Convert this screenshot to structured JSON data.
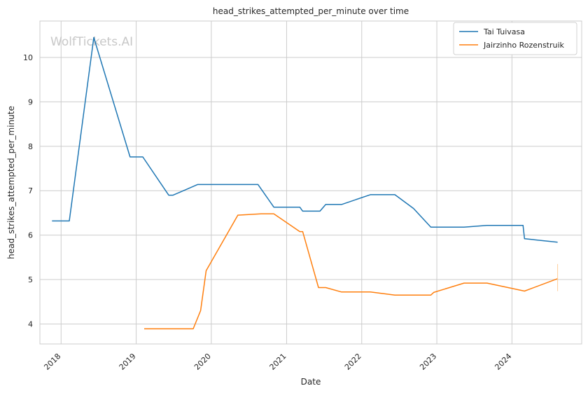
{
  "chart_data": {
    "type": "line",
    "title": "head_strikes_attempted_per_minute over time",
    "xlabel": "Date",
    "ylabel": "head_strikes_attempted_per_minute",
    "watermark": "WolfTickets.AI",
    "x_ticks": [
      "2018",
      "2019",
      "2020",
      "2021",
      "2022",
      "2023",
      "2024"
    ],
    "y_ticks": [
      4,
      5,
      6,
      7,
      8,
      9,
      10
    ],
    "xlim": [
      "2017-09-20",
      "2024-12-05"
    ],
    "ylim": [
      3.55,
      10.82
    ],
    "grid": true,
    "legend_position": "top-right",
    "series": [
      {
        "name": "Tai Tuivasa",
        "color": "#1f77b4",
        "points": [
          [
            "2017-11-18",
            6.32
          ],
          [
            "2018-02-10",
            6.32
          ],
          [
            "2018-06-09",
            10.45
          ],
          [
            "2018-12-02",
            7.76
          ],
          [
            "2019-02-02",
            7.76
          ],
          [
            "2019-06-08",
            6.9
          ],
          [
            "2019-06-29",
            6.9
          ],
          [
            "2019-10-26",
            7.14
          ],
          [
            "2020-08-15",
            7.14
          ],
          [
            "2020-10-31",
            6.63
          ],
          [
            "2021-03-06",
            6.63
          ],
          [
            "2021-03-20",
            6.54
          ],
          [
            "2021-06-12",
            6.54
          ],
          [
            "2021-07-10",
            6.69
          ],
          [
            "2021-09-25",
            6.69
          ],
          [
            "2022-02-12",
            6.91
          ],
          [
            "2022-06-11",
            6.91
          ],
          [
            "2022-09-10",
            6.6
          ],
          [
            "2022-12-03",
            6.18
          ],
          [
            "2023-05-13",
            6.18
          ],
          [
            "2023-09-02",
            6.22
          ],
          [
            "2024-02-24",
            6.22
          ],
          [
            "2024-03-02",
            5.92
          ],
          [
            "2024-08-10",
            5.84
          ]
        ]
      },
      {
        "name": "Jairzinho Rozenstruik",
        "color": "#ff7f0e",
        "points": [
          [
            "2019-02-09",
            3.89
          ],
          [
            "2019-10-05",
            3.89
          ],
          [
            "2019-11-10",
            4.3
          ],
          [
            "2019-12-07",
            5.2
          ],
          [
            "2020-05-09",
            6.45
          ],
          [
            "2020-08-29",
            6.48
          ],
          [
            "2020-10-31",
            6.48
          ],
          [
            "2021-03-06",
            6.08
          ],
          [
            "2021-03-20",
            6.08
          ],
          [
            "2021-06-05",
            4.82
          ],
          [
            "2021-07-10",
            4.82
          ],
          [
            "2021-09-25",
            4.72
          ],
          [
            "2022-02-12",
            4.72
          ],
          [
            "2022-06-11",
            4.65
          ],
          [
            "2022-12-03",
            4.65
          ],
          [
            "2022-12-17",
            4.71
          ],
          [
            "2023-05-13",
            4.92
          ],
          [
            "2023-09-02",
            4.92
          ],
          [
            "2024-03-02",
            4.74
          ],
          [
            "2024-08-10",
            5.02
          ]
        ]
      }
    ]
  }
}
